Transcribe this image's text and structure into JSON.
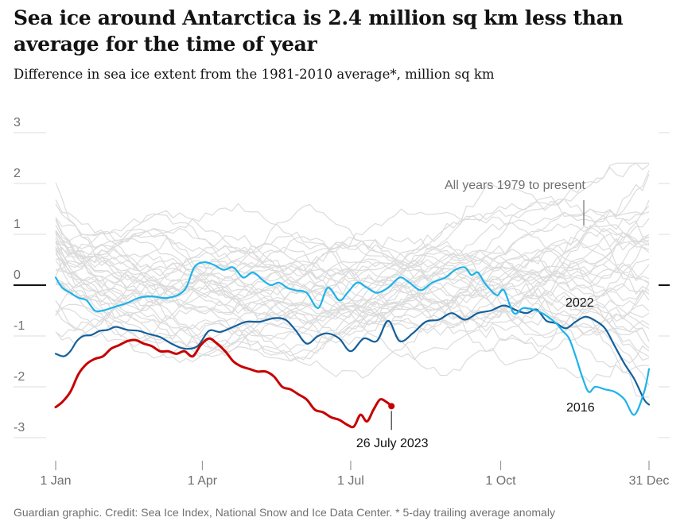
{
  "title": "Sea ice around Antarctica is 2.4 million sq km less than average for the time of year",
  "subtitle": "Difference in sea ice extent from the 1981-2010 average*, million sq km",
  "source": "Guardian graphic. Credit: Sea Ice Index, National Snow and Ice Data Center. * 5-day trailing average anomaly",
  "colors": {
    "y2023": "#c70000",
    "y2016": "#1eb3ea",
    "y2022": "#14609c",
    "all_years": "#dcdcdc",
    "grid": "#dcdcdc",
    "zero": "#121212",
    "text": "#707070"
  },
  "chart_data": {
    "type": "line",
    "x_unit": "day of year",
    "xlim": [
      1,
      365
    ],
    "ylim": [
      -3,
      3
    ],
    "y_ticks": [
      3,
      2,
      1,
      0,
      -1,
      -2,
      -3
    ],
    "y_tick_labels": [
      "3",
      "2",
      "1",
      "0",
      "-1",
      "-2",
      "-3"
    ],
    "x_ticks": [
      {
        "day": 1,
        "label": "1 Jan"
      },
      {
        "day": 91,
        "label": "1 Apr"
      },
      {
        "day": 182,
        "label": "1 Jul"
      },
      {
        "day": 274,
        "label": "1 Oct"
      },
      {
        "day": 365,
        "label": "31 Dec"
      }
    ],
    "annotations": {
      "all_years": "All years 1979 to present",
      "y2022": "2022",
      "y2016": "2016",
      "latest": "26 July 2023"
    },
    "highlighted_series": [
      {
        "name": "2022",
        "x": [
          1,
          6,
          10,
          14,
          18,
          23,
          28,
          33,
          38,
          45,
          52,
          58,
          65,
          72,
          80,
          88,
          95,
          102,
          110,
          118,
          126,
          135,
          142,
          148,
          155,
          162,
          168,
          175,
          182,
          190,
          198,
          205,
          212,
          220,
          228,
          236,
          244,
          252,
          260,
          268,
          276,
          284,
          290,
          296,
          302,
          308,
          314,
          320,
          326,
          332,
          338,
          344,
          350,
          356,
          362,
          365
        ],
        "values": [
          -1.35,
          -1.4,
          -1.3,
          -1.1,
          -1.0,
          -0.98,
          -0.9,
          -0.88,
          -0.82,
          -0.88,
          -0.9,
          -0.96,
          -1.02,
          -1.15,
          -1.25,
          -1.2,
          -0.9,
          -0.92,
          -0.82,
          -0.72,
          -0.72,
          -0.65,
          -0.68,
          -0.88,
          -1.15,
          -1.0,
          -0.95,
          -1.05,
          -1.3,
          -1.05,
          -1.1,
          -0.7,
          -1.1,
          -0.95,
          -0.72,
          -0.68,
          -0.55,
          -0.68,
          -0.55,
          -0.5,
          -0.4,
          -0.5,
          -0.55,
          -0.48,
          -0.7,
          -0.75,
          -0.85,
          -0.72,
          -0.62,
          -0.7,
          -0.85,
          -1.2,
          -1.55,
          -1.85,
          -2.25,
          -2.35
        ]
      },
      {
        "name": "2016",
        "x": [
          1,
          5,
          10,
          15,
          20,
          25,
          30,
          35,
          40,
          45,
          52,
          60,
          70,
          80,
          86,
          92,
          98,
          104,
          110,
          116,
          122,
          128,
          133,
          138,
          143,
          148,
          155,
          162,
          168,
          175,
          180,
          186,
          192,
          198,
          205,
          212,
          218,
          225,
          232,
          240,
          246,
          252,
          256,
          260,
          264,
          268,
          272,
          276,
          282,
          288,
          296,
          302,
          308,
          312,
          316,
          320,
          324,
          328,
          332,
          338,
          344,
          350,
          356,
          362,
          365
        ],
        "values": [
          0.15,
          -0.05,
          -0.15,
          -0.25,
          -0.3,
          -0.5,
          -0.5,
          -0.45,
          -0.4,
          -0.35,
          -0.25,
          -0.22,
          -0.25,
          -0.1,
          0.35,
          0.45,
          0.4,
          0.3,
          0.35,
          0.15,
          0.25,
          0.1,
          0.0,
          0.05,
          -0.05,
          -0.1,
          -0.15,
          -0.45,
          -0.05,
          -0.3,
          -0.15,
          0.05,
          -0.05,
          -0.15,
          -0.05,
          0.15,
          0.05,
          -0.1,
          0.05,
          0.15,
          0.3,
          0.35,
          0.2,
          0.25,
          0.05,
          -0.1,
          -0.2,
          -0.1,
          -0.55,
          -0.45,
          -0.5,
          -0.6,
          -0.75,
          -0.9,
          -1.05,
          -1.4,
          -1.8,
          -2.1,
          -2.0,
          -2.05,
          -2.1,
          -2.25,
          -2.55,
          -2.1,
          -1.65
        ]
      },
      {
        "name": "2023",
        "x": [
          1,
          5,
          10,
          15,
          20,
          25,
          30,
          35,
          40,
          45,
          50,
          55,
          60,
          65,
          70,
          75,
          80,
          85,
          90,
          95,
          100,
          105,
          110,
          115,
          120,
          125,
          130,
          135,
          140,
          145,
          150,
          155,
          160,
          165,
          170,
          175,
          180,
          184,
          188,
          192,
          196,
          200,
          204,
          207
        ],
        "values": [
          -2.4,
          -2.3,
          -2.1,
          -1.75,
          -1.55,
          -1.45,
          -1.4,
          -1.25,
          -1.18,
          -1.1,
          -1.08,
          -1.15,
          -1.2,
          -1.3,
          -1.3,
          -1.35,
          -1.3,
          -1.4,
          -1.18,
          -1.05,
          -1.15,
          -1.3,
          -1.5,
          -1.6,
          -1.65,
          -1.7,
          -1.7,
          -1.8,
          -2.0,
          -2.05,
          -2.15,
          -2.25,
          -2.45,
          -2.5,
          -2.6,
          -2.65,
          -2.75,
          -2.78,
          -2.55,
          -2.68,
          -2.45,
          -2.25,
          -2.3,
          -2.38
        ]
      }
    ],
    "latest_point": {
      "x": 207,
      "value": -2.38
    },
    "background_series_note": "Thin grey lines show every year from 1979 to present"
  }
}
